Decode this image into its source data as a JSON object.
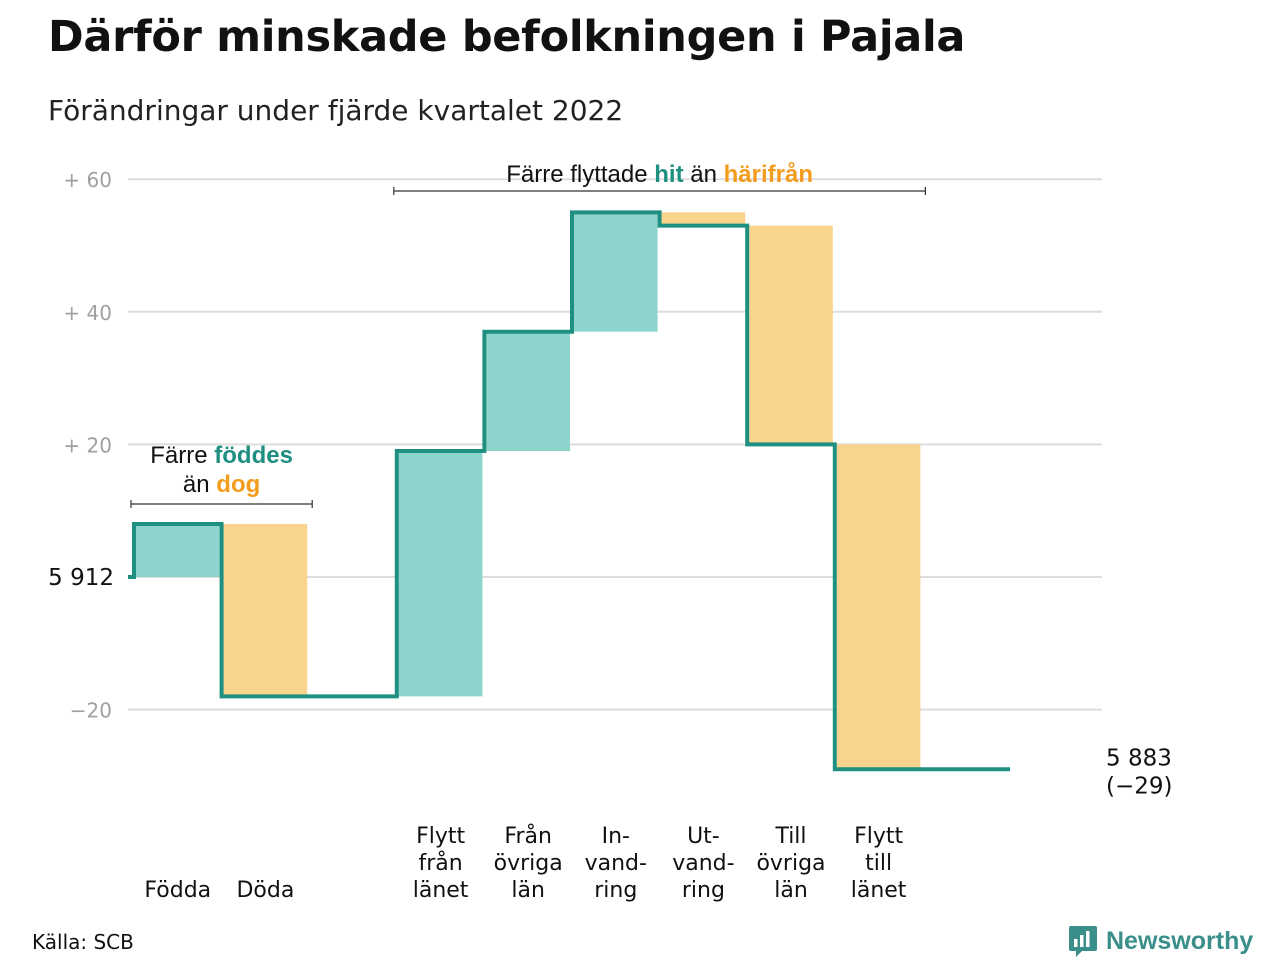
{
  "title": "Därför minskade befolkningen i Pajala",
  "subtitle": "Förändringar under fjärde kvartalet 2022",
  "source": "Källa: SCB",
  "brand": {
    "name": "Newsworthy",
    "icon": "newsworthy-logo-icon"
  },
  "colors": {
    "increase": "#8dd5cc",
    "decrease": "#f9d48d",
    "line": "#1e8f80",
    "accent_orange": "#f39c1e",
    "grid": "#dddddd",
    "tick": "#a0a0a0"
  },
  "chart_data": {
    "type": "waterfall",
    "start_value": 5912,
    "start_label": "5 912",
    "end_value": 5883,
    "end_label": "5 883",
    "end_change_label": "(−29)",
    "ylim": [
      -33,
      65
    ],
    "y_ticks": [
      {
        "value": 60,
        "label": "+ 60"
      },
      {
        "value": 40,
        "label": "+ 40"
      },
      {
        "value": 20,
        "label": "+ 20"
      },
      {
        "value": 0,
        "label": "5 912"
      },
      {
        "value": -20,
        "label": "−20"
      }
    ],
    "steps": [
      {
        "label": "Födda",
        "change": 8,
        "kind": "increase"
      },
      {
        "label": "Döda",
        "change": -26,
        "kind": "decrease"
      },
      {
        "label": "",
        "change": 0,
        "kind": "gap"
      },
      {
        "label": "Flytt från länet",
        "label_lines": [
          "Flytt",
          "från",
          "länet"
        ],
        "change": 37,
        "kind": "increase"
      },
      {
        "label": "Från övriga län",
        "label_lines": [
          "Från",
          "övriga",
          "län"
        ],
        "change": 18,
        "kind": "increase"
      },
      {
        "label": "In-vand-ring",
        "label_lines": [
          "In-",
          "vand-",
          "ring"
        ],
        "change": 18,
        "kind": "increase"
      },
      {
        "label": "Ut-vand-ring",
        "label_lines": [
          "Ut-",
          "vand-",
          "ring"
        ],
        "change": -2,
        "kind": "decrease"
      },
      {
        "label": "Till övriga län",
        "label_lines": [
          "Till",
          "övriga",
          "län"
        ],
        "change": -33,
        "kind": "decrease"
      },
      {
        "label": "Flytt till länet",
        "label_lines": [
          "Flytt",
          "till",
          "länet"
        ],
        "change": -49,
        "kind": "decrease"
      },
      {
        "label": "",
        "change": 0,
        "kind": "gap"
      }
    ],
    "annotations": [
      {
        "id": "births",
        "spans": [
          0,
          1
        ],
        "parts": [
          {
            "text": "Färre ",
            "color": "default"
          },
          {
            "text": "föddes",
            "color": "increase_text"
          },
          {
            "text": "än ",
            "color": "default",
            "newline": true
          },
          {
            "text": "dog",
            "color": "decrease_text"
          }
        ]
      },
      {
        "id": "moves",
        "spans": [
          3,
          8
        ],
        "parts": [
          {
            "text": "Färre flyttade ",
            "color": "default"
          },
          {
            "text": "hit",
            "color": "increase_text"
          },
          {
            "text": " än ",
            "color": "default"
          },
          {
            "text": "härifrån",
            "color": "decrease_text"
          }
        ]
      }
    ]
  }
}
